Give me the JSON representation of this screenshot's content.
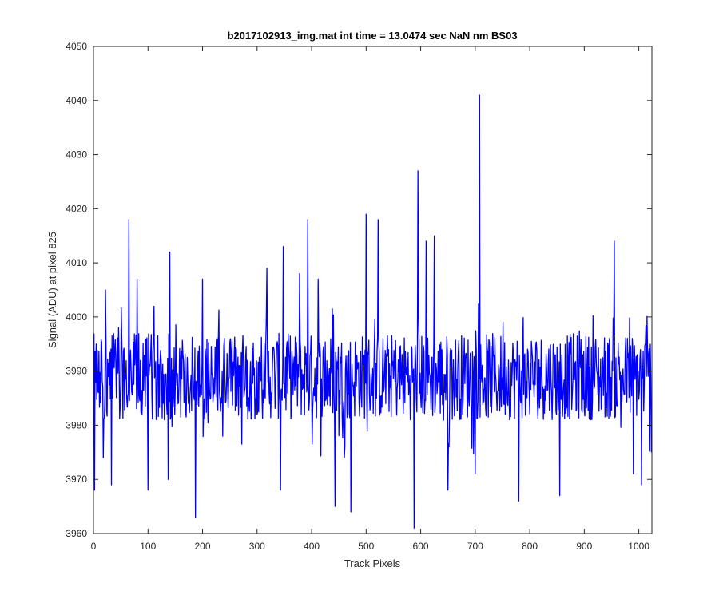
{
  "chart_data": {
    "type": "line",
    "title": "b2017102913_img.mat int time = 13.0474 sec  NaN nm BS03",
    "xlabel": "Track Pixels",
    "ylabel": "Signal (ADU) at pixel 825",
    "xlim": [
      0,
      1024
    ],
    "ylim": [
      3960,
      4050
    ],
    "xticks": [
      0,
      100,
      200,
      300,
      400,
      500,
      600,
      700,
      800,
      900,
      1000
    ],
    "yticks": [
      3960,
      3970,
      3980,
      3990,
      4000,
      4010,
      4020,
      4030,
      4040,
      4050
    ],
    "grid": false,
    "line_color": "#0000ff",
    "series": [
      {
        "noise_baseline": 3989,
        "x_start": 0,
        "x_end": 1023,
        "num_points": 1024,
        "notable_points": [
          {
            "x": 2,
            "y": 3968
          },
          {
            "x": 5,
            "y": 3995
          },
          {
            "x": 18,
            "y": 3974
          },
          {
            "x": 22,
            "y": 4005
          },
          {
            "x": 33,
            "y": 3969
          },
          {
            "x": 65,
            "y": 4018
          },
          {
            "x": 80,
            "y": 4007
          },
          {
            "x": 100,
            "y": 3968
          },
          {
            "x": 137,
            "y": 3970
          },
          {
            "x": 140,
            "y": 4012
          },
          {
            "x": 187,
            "y": 3963
          },
          {
            "x": 200,
            "y": 4007
          },
          {
            "x": 318,
            "y": 4009
          },
          {
            "x": 343,
            "y": 3968
          },
          {
            "x": 348,
            "y": 4013
          },
          {
            "x": 378,
            "y": 4008
          },
          {
            "x": 393,
            "y": 4018
          },
          {
            "x": 412,
            "y": 4007
          },
          {
            "x": 443,
            "y": 3965
          },
          {
            "x": 472,
            "y": 3964
          },
          {
            "x": 500,
            "y": 4019
          },
          {
            "x": 522,
            "y": 4018
          },
          {
            "x": 588,
            "y": 3961
          },
          {
            "x": 595,
            "y": 4027
          },
          {
            "x": 610,
            "y": 4014
          },
          {
            "x": 625,
            "y": 4015
          },
          {
            "x": 650,
            "y": 3968
          },
          {
            "x": 700,
            "y": 3971
          },
          {
            "x": 708,
            "y": 4041
          },
          {
            "x": 780,
            "y": 3966
          },
          {
            "x": 855,
            "y": 3967
          },
          {
            "x": 955,
            "y": 4014
          },
          {
            "x": 990,
            "y": 3971
          },
          {
            "x": 1005,
            "y": 3969
          },
          {
            "x": 1023,
            "y": 3975
          }
        ]
      }
    ]
  }
}
